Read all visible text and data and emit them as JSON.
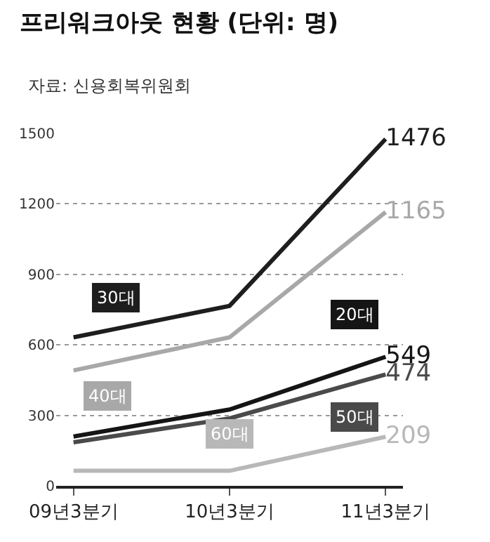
{
  "chart_data": {
    "type": "line",
    "title": "프리워크아웃 현황 (단위: 명)",
    "subtitle": "자료: 신용회복위원회",
    "categories": [
      "09년3분기",
      "10년3분기",
      "11년3분기"
    ],
    "series": [
      {
        "name": "30대",
        "color": "#1e1e1e",
        "values": [
          632,
          766,
          1476
        ],
        "value_labels": [
          null,
          null,
          "1476"
        ]
      },
      {
        "name": "40대",
        "color": "#a8a8a8",
        "values": [
          491,
          632,
          1165
        ],
        "value_labels": [
          null,
          null,
          "1165"
        ]
      },
      {
        "name": "20대",
        "color": "#151515",
        "values": [
          210,
          325,
          549
        ],
        "value_labels": [
          null,
          null,
          "549"
        ]
      },
      {
        "name": "50대",
        "color": "#4a4a4a",
        "values": [
          185,
          287,
          474
        ],
        "value_labels": [
          null,
          null,
          "474"
        ]
      },
      {
        "name": "60대",
        "color": "#b8b8b8",
        "values": [
          64,
          64,
          209
        ],
        "value_labels": [
          null,
          null,
          "209"
        ]
      }
    ],
    "ylim": [
      0,
      1500
    ],
    "yticks": [
      0,
      300,
      600,
      900,
      1200,
      1500
    ],
    "grid": "y",
    "legend": false,
    "marker": "none",
    "line_style": "solid"
  }
}
